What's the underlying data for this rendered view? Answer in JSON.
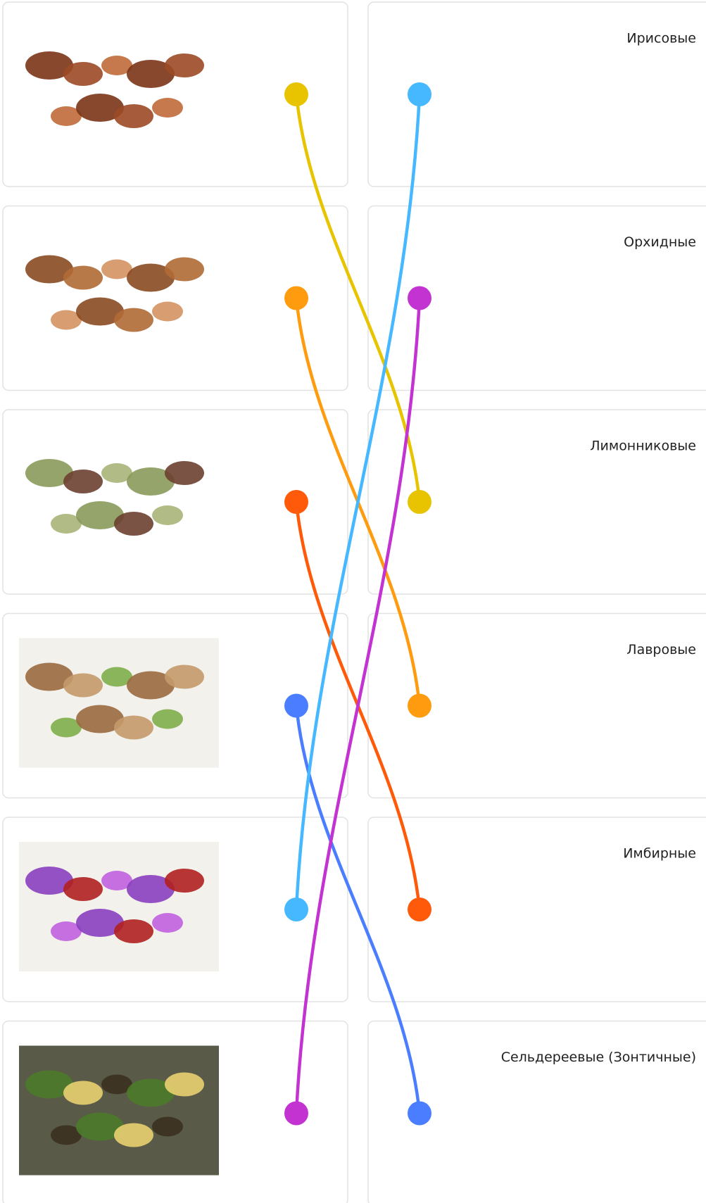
{
  "right_labels": [
    "Ирисовые",
    "Орхидные",
    "Лимонниковые",
    "Лавровые",
    "Имбирные",
    "Сельдереевые (Зонтичные)"
  ],
  "connections": [
    {
      "left": 0,
      "right": 2,
      "color": "#e8c400"
    },
    {
      "left": 1,
      "right": 3,
      "color": "#ff9b0f"
    },
    {
      "left": 2,
      "right": 4,
      "color": "#ff5a0a"
    },
    {
      "left": 3,
      "right": 5,
      "color": "#4a7dff"
    },
    {
      "left": 4,
      "right": 0,
      "color": "#45b8ff"
    },
    {
      "left": 5,
      "right": 1,
      "color": "#c333d1"
    }
  ]
}
